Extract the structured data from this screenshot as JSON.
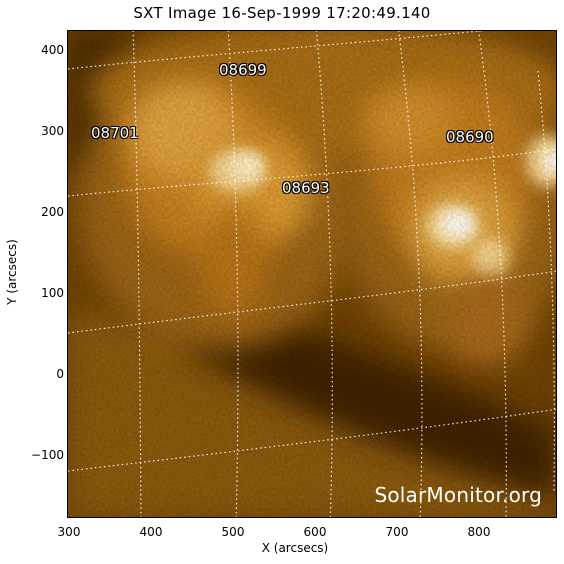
{
  "title": "SXT Image 16-Sep-1999 17:20:49.140",
  "axes": {
    "xlabel": "X (arcsecs)",
    "ylabel": "Y (arcsecs)",
    "xticks": [
      "300",
      "400",
      "500",
      "600",
      "700",
      "800"
    ],
    "yticks": [
      "400",
      "300",
      "200",
      "100",
      "0",
      "−100"
    ]
  },
  "regions": [
    "08699",
    "08701",
    "08690",
    "08693"
  ],
  "watermark": "SolarMonitor.org",
  "colors": {
    "background_dark": "#5c3602",
    "corona_mid": "#c8811f",
    "corona_bright": "#ffd98a",
    "grid": "#ffffff"
  }
}
